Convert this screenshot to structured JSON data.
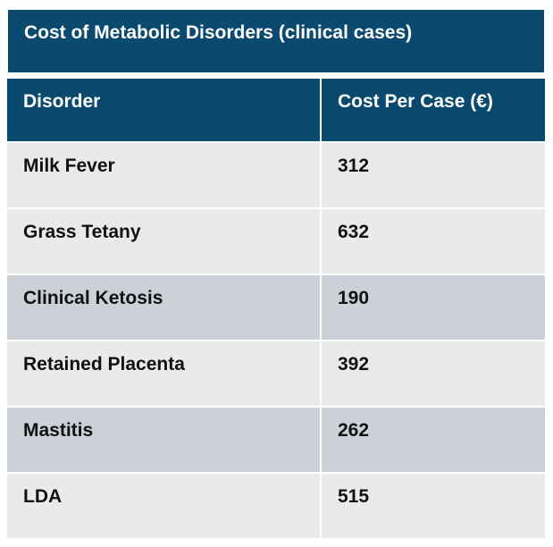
{
  "chart_data": {
    "type": "table",
    "title": "Cost of Metabolic Disorders (clinical cases)",
    "columns": [
      "Disorder",
      "Cost Per Case (€)"
    ],
    "rows": [
      [
        "Milk Fever",
        "312"
      ],
      [
        "Grass Tetany",
        "632"
      ],
      [
        "Clinical Ketosis",
        "190"
      ],
      [
        "Retained Placenta",
        "392"
      ],
      [
        "Mastitis",
        "262"
      ],
      [
        "LDA",
        "515"
      ]
    ]
  },
  "colors": {
    "header": "#0b4a6f",
    "row_light": "#e9eaec",
    "row_dark": "#ccd0d7"
  }
}
